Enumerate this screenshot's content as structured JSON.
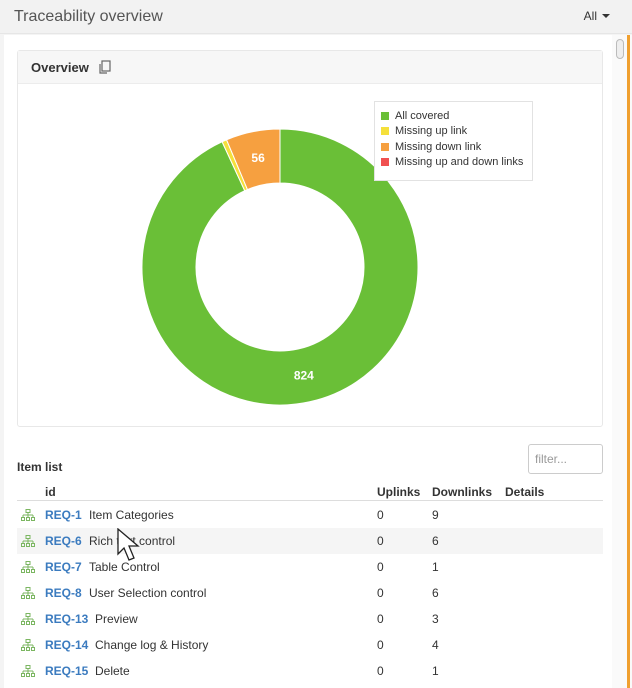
{
  "header": {
    "title": "Traceability overview",
    "filter_label": "All"
  },
  "overview": {
    "title": "Overview",
    "copy_icon": "copy-icon"
  },
  "chart_data": {
    "type": "pie",
    "variant": "donut",
    "categories": [
      "All covered",
      "Missing up link",
      "Missing down link",
      "Missing up and down links"
    ],
    "values": [
      824,
      5,
      56,
      0
    ],
    "data_labels": [
      "824",
      "",
      "56",
      ""
    ],
    "colors": [
      "#6abf37",
      "#f5e03b",
      "#f6a040",
      "#f05050"
    ],
    "legend_position": "top-right",
    "title": ""
  },
  "item_list": {
    "title": "Item list",
    "filter_placeholder": "filter...",
    "columns": {
      "id": "id",
      "uplinks": "Uplinks",
      "downlinks": "Downlinks",
      "details": "Details"
    },
    "rows": [
      {
        "id": "REQ-1",
        "name": "Item Categories",
        "uplinks": "0",
        "downlinks": "9"
      },
      {
        "id": "REQ-6",
        "name": "Rich text control",
        "uplinks": "0",
        "downlinks": "6"
      },
      {
        "id": "REQ-7",
        "name": "Table Control",
        "uplinks": "0",
        "downlinks": "1"
      },
      {
        "id": "REQ-8",
        "name": "User Selection control",
        "uplinks": "0",
        "downlinks": "6"
      },
      {
        "id": "REQ-13",
        "name": "Preview",
        "uplinks": "0",
        "downlinks": "3"
      },
      {
        "id": "REQ-14",
        "name": "Change log & History",
        "uplinks": "0",
        "downlinks": "4"
      },
      {
        "id": "REQ-15",
        "name": "Delete",
        "uplinks": "0",
        "downlinks": "1"
      }
    ]
  }
}
